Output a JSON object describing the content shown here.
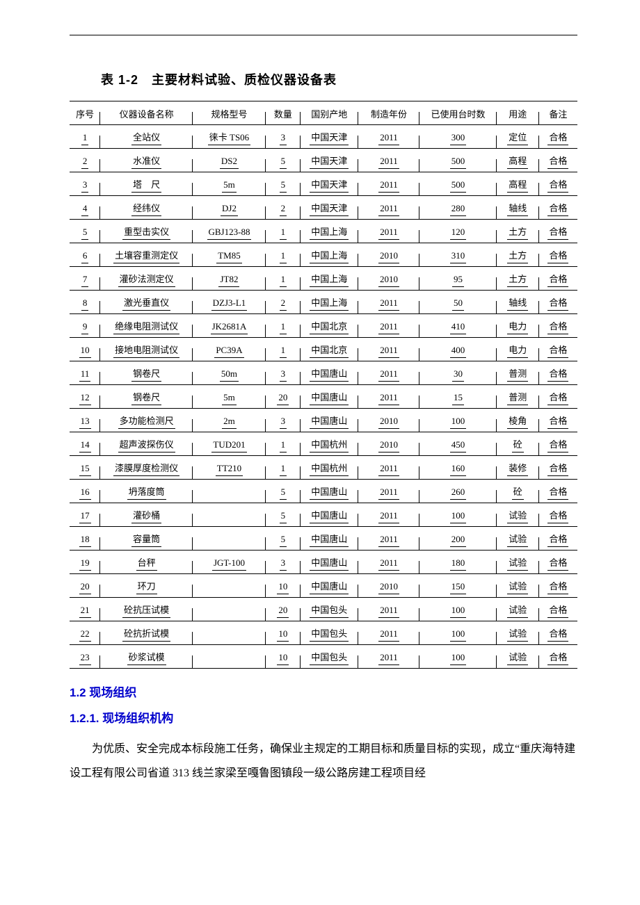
{
  "table_title": "表 1-2　主要材料试验、质检仪器设备表",
  "table": {
    "columns": [
      "序号",
      "仪器设备名称",
      "规格型号",
      "数量",
      "国别产地",
      "制造年份",
      "已使用台时数",
      "用途",
      "备注"
    ],
    "rows": [
      [
        "1",
        "全站仪",
        "徕卡 TS06",
        "3",
        "中国天津",
        "2011",
        "300",
        "定位",
        "合格"
      ],
      [
        "2",
        "水准仪",
        "DS2",
        "5",
        "中国天津",
        "2011",
        "500",
        "高程",
        "合格"
      ],
      [
        "3",
        "塔　尺",
        "5m",
        "5",
        "中国天津",
        "2011",
        "500",
        "高程",
        "合格"
      ],
      [
        "4",
        "经纬仪",
        "DJ2",
        "2",
        "中国天津",
        "2011",
        "280",
        "轴线",
        "合格"
      ],
      [
        "5",
        "重型击实仪",
        "GBJ123-88",
        "1",
        "中国上海",
        "2011",
        "120",
        "土方",
        "合格"
      ],
      [
        "6",
        "土壤容重测定仪",
        "TM85",
        "1",
        "中国上海",
        "2010",
        "310",
        "土方",
        "合格"
      ],
      [
        "7",
        "灌砂法测定仪",
        "JT82",
        "1",
        "中国上海",
        "2010",
        "95",
        "土方",
        "合格"
      ],
      [
        "8",
        "激光垂直仪",
        "DZJ3-L1",
        "2",
        "中国上海",
        "2011",
        "50",
        "轴线",
        "合格"
      ],
      [
        "9",
        "绝缘电阻测试仪",
        "JK2681A",
        "1",
        "中国北京",
        "2011",
        "410",
        "电力",
        "合格"
      ],
      [
        "10",
        "接地电阻测试仪",
        "PC39A",
        "1",
        "中国北京",
        "2011",
        "400",
        "电力",
        "合格"
      ],
      [
        "11",
        "钢卷尺",
        "50m",
        "3",
        "中国唐山",
        "2011",
        "30",
        "普测",
        "合格"
      ],
      [
        "12",
        "钢卷尺",
        "5m",
        "20",
        "中国唐山",
        "2011",
        "15",
        "普测",
        "合格"
      ],
      [
        "13",
        "多功能检测尺",
        "2m",
        "3",
        "中国唐山",
        "2010",
        "100",
        "棱角",
        "合格"
      ],
      [
        "14",
        "超声波探伤仪",
        "TUD201",
        "1",
        "中国杭州",
        "2010",
        "450",
        "砼",
        "合格"
      ],
      [
        "15",
        "漆膜厚度检测仪",
        "TT210",
        "1",
        "中国杭州",
        "2011",
        "160",
        "装修",
        "合格"
      ],
      [
        "16",
        "坍落度筒",
        "",
        "5",
        "中国唐山",
        "2011",
        "260",
        "砼",
        "合格"
      ],
      [
        "17",
        "灌砂桶",
        "",
        "5",
        "中国唐山",
        "2011",
        "100",
        "试验",
        "合格"
      ],
      [
        "18",
        "容量筒",
        "",
        "5",
        "中国唐山",
        "2011",
        "200",
        "试验",
        "合格"
      ],
      [
        "19",
        "台秤",
        "JGT-100",
        "3",
        "中国唐山",
        "2011",
        "180",
        "试验",
        "合格"
      ],
      [
        "20",
        "环刀",
        "",
        "10",
        "中国唐山",
        "2010",
        "150",
        "试验",
        "合格"
      ],
      [
        "21",
        "砼抗压试模",
        "",
        "20",
        "中国包头",
        "2011",
        "100",
        "试验",
        "合格"
      ],
      [
        "22",
        "砼抗折试模",
        "",
        "10",
        "中国包头",
        "2011",
        "100",
        "试验",
        "合格"
      ],
      [
        "23",
        "砂浆试模",
        "",
        "10",
        "中国包头",
        "2011",
        "100",
        "试验",
        "合格"
      ]
    ]
  },
  "section_1_2": "1.2 现场组织",
  "section_1_2_1": "1.2.1. 现场组织机构",
  "paragraph": "为优质、安全完成本标段施工任务，确保业主规定的工期目标和质量目标的实现，成立“重庆海特建设工程有限公司省道 313 线兰家梁至嘎鲁图镇段一级公路房建工程项目经"
}
